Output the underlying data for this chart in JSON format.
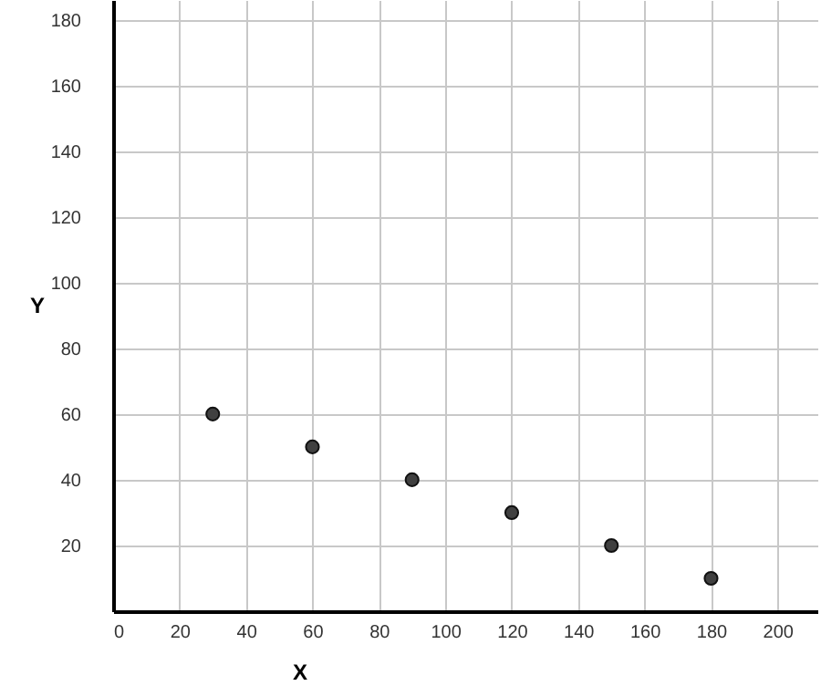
{
  "chart_data": {
    "type": "scatter",
    "xlabel": "X",
    "ylabel": "Y",
    "x": [
      30,
      60,
      90,
      120,
      150,
      180
    ],
    "series": [
      {
        "color": "#404040",
        "values": [
          60,
          50,
          40,
          30,
          20,
          10
        ]
      }
    ],
    "xlim": [
      0,
      212
    ],
    "ylim": [
      0,
      186
    ],
    "xticks": [
      0,
      20,
      40,
      60,
      80,
      100,
      120,
      140,
      160,
      180,
      200
    ],
    "yticks": [
      20,
      40,
      60,
      80,
      100,
      120,
      140,
      160,
      180
    ],
    "grid": true,
    "marker": "circle"
  }
}
